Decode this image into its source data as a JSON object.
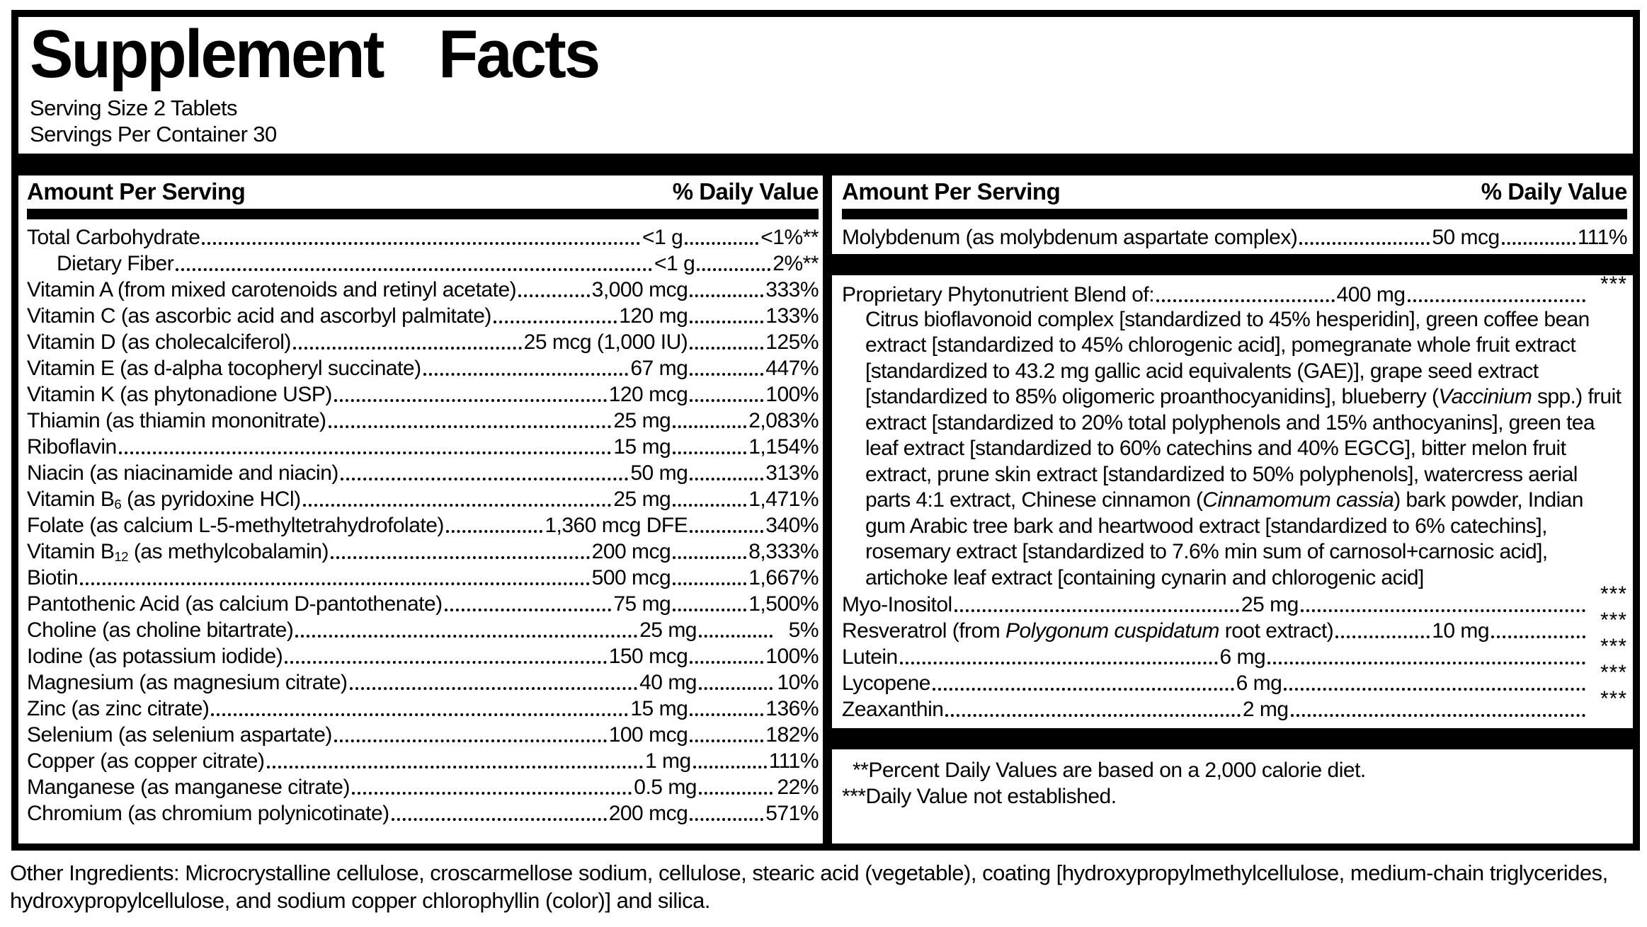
{
  "title": "Supplement Facts",
  "serving": {
    "size": "Serving Size 2 Tablets",
    "per_container": "Servings Per Container 30"
  },
  "headers": {
    "amount": "Amount Per Serving",
    "daily_value": "% Daily Value"
  },
  "left_column": {
    "rows": [
      {
        "name": "Total Carbohydrate",
        "amount": "<1 g",
        "dv": "<1%**"
      },
      {
        "name": "Dietary Fiber",
        "amount": "<1 g",
        "dv": "2%**",
        "indent": true
      },
      {
        "name": "Vitamin A (from mixed carotenoids and retinyl acetate)",
        "amount": "3,000 mcg",
        "dv": "333%"
      },
      {
        "name": "Vitamin C (as ascorbic acid and ascorbyl palmitate)",
        "amount": "120 mg",
        "dv": "133%"
      },
      {
        "name": "Vitamin D (as cholecalciferol)",
        "amount": "25 mcg (1,000 IU)",
        "dv": "125%"
      },
      {
        "name": "Vitamin E (as d-alpha tocopheryl succinate)",
        "amount": "67 mg",
        "dv": "447%"
      },
      {
        "name": "Vitamin K (as phytonadione USP)",
        "amount": "120 mcg",
        "dv": "100%"
      },
      {
        "name": "Thiamin (as thiamin mononitrate)",
        "amount": "25 mg",
        "dv": "2,083%"
      },
      {
        "name": "Riboflavin",
        "amount": "15 mg",
        "dv": "1,154%"
      },
      {
        "name": "Niacin (as niacinamide and niacin)",
        "amount": "50 mg",
        "dv": "313%"
      },
      {
        "name": "Vitamin B<sub>6</sub> (as pyridoxine HCl)",
        "amount": "25 mg",
        "dv": "1,471%"
      },
      {
        "name": "Folate (as calcium L-5-methyltetrahydrofolate)",
        "amount": "1,360 mcg DFE",
        "dv": "340%"
      },
      {
        "name": "Vitamin B<sub>12</sub> (as methylcobalamin)",
        "amount": "200 mcg",
        "dv": "8,333%"
      },
      {
        "name": "Biotin",
        "amount": "500 mcg",
        "dv": "1,667%"
      },
      {
        "name": "Pantothenic Acid (as calcium D-pantothenate)",
        "amount": "75 mg",
        "dv": "1,500%"
      },
      {
        "name": "Choline (as choline bitartrate)",
        "amount": "25 mg",
        "dv": "5%"
      },
      {
        "name": "Iodine (as potassium iodide)",
        "amount": "150 mcg",
        "dv": "100%"
      },
      {
        "name": "Magnesium (as magnesium citrate)",
        "amount": "40 mg",
        "dv": "10%"
      },
      {
        "name": "Zinc (as zinc citrate)",
        "amount": "15 mg",
        "dv": "136%"
      },
      {
        "name": "Selenium (as selenium aspartate)",
        "amount": "100 mcg",
        "dv": "182%"
      },
      {
        "name": "Copper (as copper citrate)",
        "amount": "1 mg",
        "dv": "111%"
      },
      {
        "name": "Manganese (as manganese citrate)",
        "amount": "0.5 mg",
        "dv": "22%"
      },
      {
        "name": "Chromium (as chromium polynicotinate)",
        "amount": "200 mcg",
        "dv": "571%"
      }
    ]
  },
  "right_column": {
    "molybdenum_row": {
      "name": "Molybdenum (as molybdenum aspartate complex)",
      "amount": "50 mcg",
      "dv": "111%"
    },
    "blend": {
      "name": "Proprietary Phytonutrient Blend of:",
      "amount": "400 mg",
      "dv": "***",
      "description": "Citrus bioflavonoid complex [standardized to 45% hesperidin], green coffee bean extract [standardized to 45% chlorogenic acid], pomegranate whole fruit extract [standardized to 43.2 mg gallic acid equivalents (GAE)], grape seed extract [standardized to 85% oligomeric proanthocyanidins], blueberry (<i>Vaccinium</i> spp.) fruit extract [standardized to 20% total polyphenols and 15% anthocyanins], green tea leaf extract [standardized to 60% catechins and 40% EGCG], bitter melon fruit extract, prune skin extract [standardized to 50% polyphenols], watercress aerial parts 4:1 extract, Chinese cinnamon (<i>Cinnamomum cassia</i>) bark powder, Indian gum Arabic tree bark and heartwood extract [standardized to 6% catechins], rosemary extract [standardized to 7.6% min sum of carnosol+carnosic acid], artichoke leaf extract [containing cynarin and chlorogenic acid]"
    },
    "rows": [
      {
        "name": "Myo-Inositol",
        "amount": "25 mg",
        "dv": "***"
      },
      {
        "name": "Resveratrol (from <i>Polygonum cuspidatum</i> root extract)",
        "amount": "10 mg",
        "dv": "***"
      },
      {
        "name": "Lutein",
        "amount": "6 mg",
        "dv": "***"
      },
      {
        "name": "Lycopene",
        "amount": "6 mg",
        "dv": "***"
      },
      {
        "name": "Zeaxanthin",
        "amount": "2 mg",
        "dv": "***"
      }
    ],
    "footnotes": [
      "**Percent Daily Values are based on a 2,000 calorie diet.",
      "***Daily Value not established."
    ]
  },
  "other_ingredients": "Other Ingredients: Microcrystalline cellulose, croscarmellose sodium, cellulose, stearic acid (vegetable), coating [hydroxypropylmethylcellulose, medium-chain triglycerides, hydroxypropylcellulose, and sodium copper chlorophyllin (color)] and silica.",
  "colors": {
    "ink": "#000000",
    "paper": "#ffffff"
  }
}
